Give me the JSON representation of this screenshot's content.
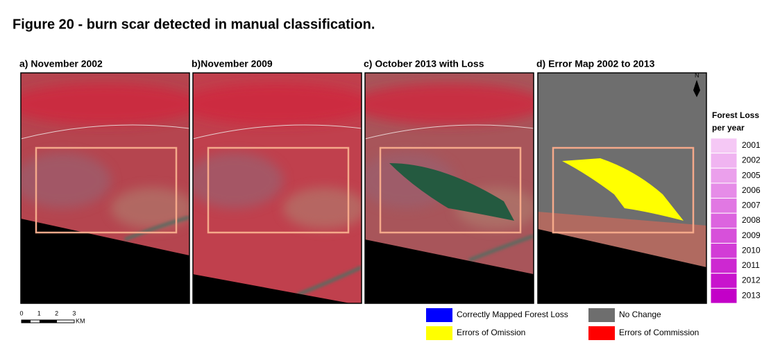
{
  "title": "Figure 20 - burn scar detected in manual classification.",
  "panels": [
    {
      "label": "a) November 2002"
    },
    {
      "label": "b)November 2009"
    },
    {
      "label": "c)  October 2013 with Loss"
    },
    {
      "label": "d) Error Map 2002 to 2013"
    }
  ],
  "north_label": "N",
  "scale_bar": {
    "ticks": [
      "0",
      "1",
      "2",
      "3"
    ],
    "unit": "KM"
  },
  "forest_loss_legend": {
    "title": [
      "Forest Loss",
      "per year"
    ],
    "years": [
      "2001",
      "2002",
      "2005",
      "2006",
      "2007",
      "2008",
      "2009",
      "2010",
      "2011",
      "2012",
      "2013"
    ]
  },
  "error_legend": [
    {
      "label": "Correctly Mapped Forest Loss",
      "color": "#0000ff"
    },
    {
      "label": "No Change",
      "color": "#6e6e6e"
    },
    {
      "label": "Errors of Omission",
      "color": "#ffff00"
    },
    {
      "label": "Errors of Commission",
      "color": "#ff0000"
    }
  ]
}
